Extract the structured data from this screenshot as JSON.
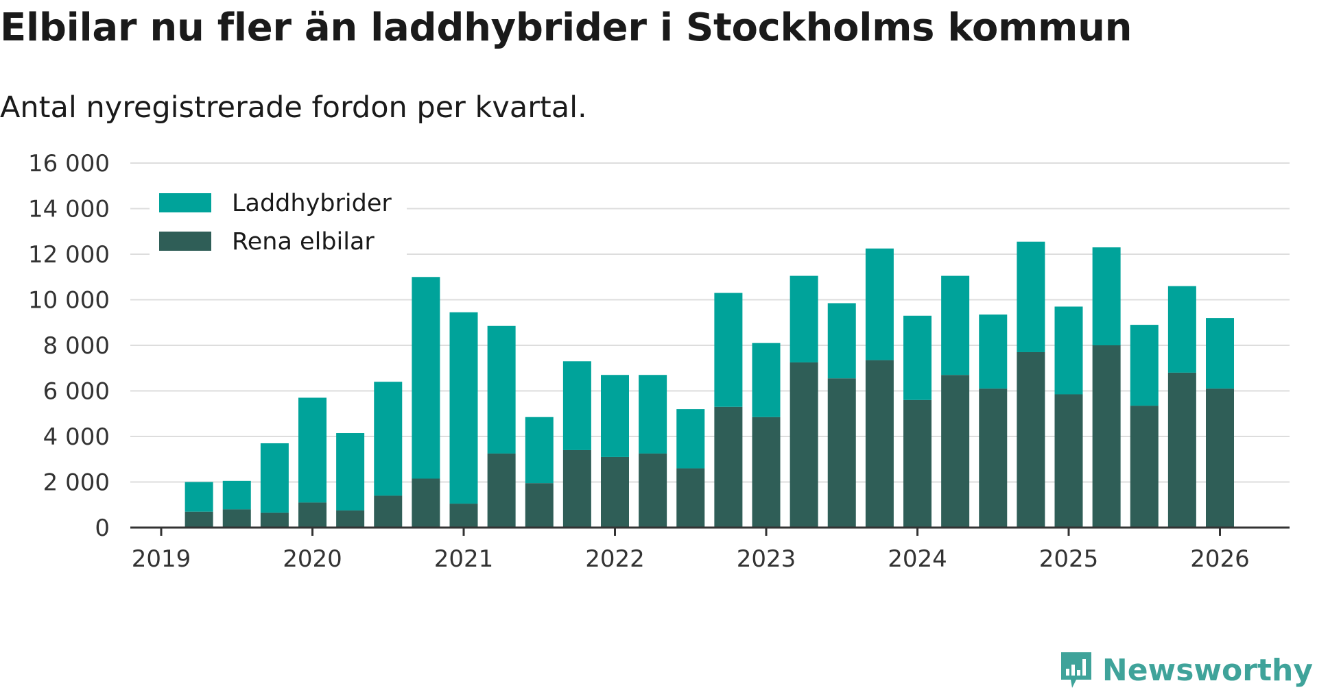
{
  "title": "Elbilar nu fler än laddhybrider i Stockholms kommun",
  "subtitle": "Antal nyregistrerade fordon per kvartal.",
  "brand": "Newsworthy",
  "colors": {
    "laddhybrider": "#00a39a",
    "rena_elbilar": "#2f5e57",
    "grid": "#dddddd",
    "axis": "#333333",
    "brand": "#3fa39a"
  },
  "chart_data": {
    "type": "bar",
    "stacked": true,
    "title": "Elbilar nu fler än laddhybrider i Stockholms kommun",
    "subtitle": "Antal nyregistrerade fordon per kvartal.",
    "xlabel": "",
    "ylabel": "",
    "ylim": [
      0,
      16000
    ],
    "yticks": [
      0,
      2000,
      4000,
      6000,
      8000,
      10000,
      12000,
      14000,
      16000
    ],
    "ytick_labels": [
      "0",
      "2 000",
      "4 000",
      "6 000",
      "8 000",
      "10 000",
      "12 000",
      "14 000",
      "16 000"
    ],
    "xlim": [
      2019.0,
      2026.45
    ],
    "xticks": [
      2019,
      2020,
      2021,
      2022,
      2023,
      2024,
      2025,
      2026
    ],
    "xtick_labels": [
      "2019",
      "2020",
      "2021",
      "2022",
      "2023",
      "2024",
      "2025",
      "2026"
    ],
    "grid": true,
    "legend_position": "top-left",
    "categories": [
      "2019 Q2",
      "2019 Q3",
      "2019 Q4",
      "2020 Q1",
      "2020 Q2",
      "2020 Q3",
      "2020 Q4",
      "2021 Q1",
      "2021 Q2",
      "2021 Q3",
      "2021 Q4",
      "2022 Q1",
      "2022 Q2",
      "2022 Q3",
      "2022 Q4",
      "2023 Q1",
      "2023 Q2",
      "2023 Q3",
      "2023 Q4",
      "2024 Q1",
      "2024 Q2",
      "2024 Q3",
      "2024 Q4",
      "2025 Q1",
      "2025 Q2",
      "2025 Q3",
      "2025 Q4",
      "2026 Q1"
    ],
    "x": [
      2019.25,
      2019.5,
      2019.75,
      2020.0,
      2020.25,
      2020.5,
      2020.75,
      2021.0,
      2021.25,
      2021.5,
      2021.75,
      2022.0,
      2022.25,
      2022.5,
      2022.75,
      2023.0,
      2023.25,
      2023.5,
      2023.75,
      2024.0,
      2024.25,
      2024.5,
      2024.75,
      2025.0,
      2025.25,
      2025.5,
      2025.75,
      2026.0
    ],
    "series": [
      {
        "name": "Rena elbilar",
        "values": [
          700,
          800,
          650,
          1100,
          750,
          1400,
          2150,
          1050,
          3250,
          1950,
          3400,
          3100,
          3250,
          2600,
          5300,
          4850,
          7250,
          6550,
          7350,
          5600,
          6700,
          6100,
          7700,
          5850,
          8000,
          5350,
          6800,
          6100
        ]
      },
      {
        "name": "Laddhybrider",
        "values": [
          1300,
          1250,
          3050,
          4600,
          3400,
          5000,
          8850,
          8400,
          5600,
          2900,
          3900,
          3600,
          3450,
          2600,
          5000,
          3250,
          3800,
          3300,
          4900,
          3700,
          4350,
          3250,
          4850,
          3850,
          4300,
          3550,
          3800,
          3100
        ]
      }
    ]
  }
}
